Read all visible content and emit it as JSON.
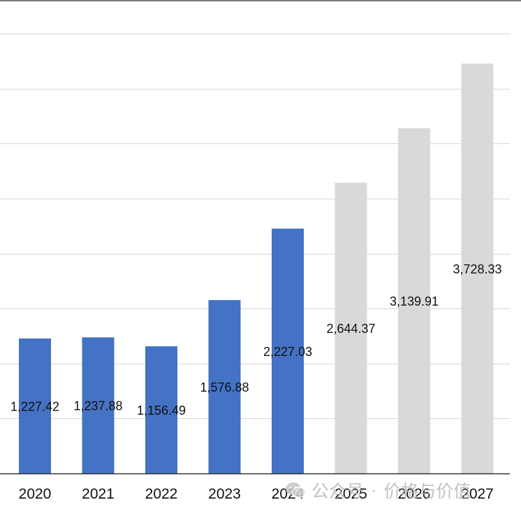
{
  "chart_data": {
    "type": "bar",
    "categories": [
      "2020",
      "2021",
      "2022",
      "2023",
      "2024",
      "2025",
      "2026",
      "2027"
    ],
    "values": [
      1227.42,
      1237.88,
      1156.49,
      1576.88,
      2227.03,
      2644.37,
      3139.91,
      3728.33
    ],
    "value_labels": [
      "1,227.42",
      "1,237.88",
      "1,156.49",
      "1,576.88",
      "2,227.03",
      "2,644.37",
      "3,139.91",
      "3,728.33"
    ],
    "forecast_from_index": 5,
    "ylim": [
      0,
      4000
    ],
    "grid": true,
    "colors": {
      "actual": "#4472c4",
      "forecast": "#d9d9d9",
      "grid": "#d6d6d6",
      "axis": "#333333"
    }
  },
  "watermark": {
    "account_label": "公众号",
    "separator": "·",
    "name": "价格与价值"
  }
}
